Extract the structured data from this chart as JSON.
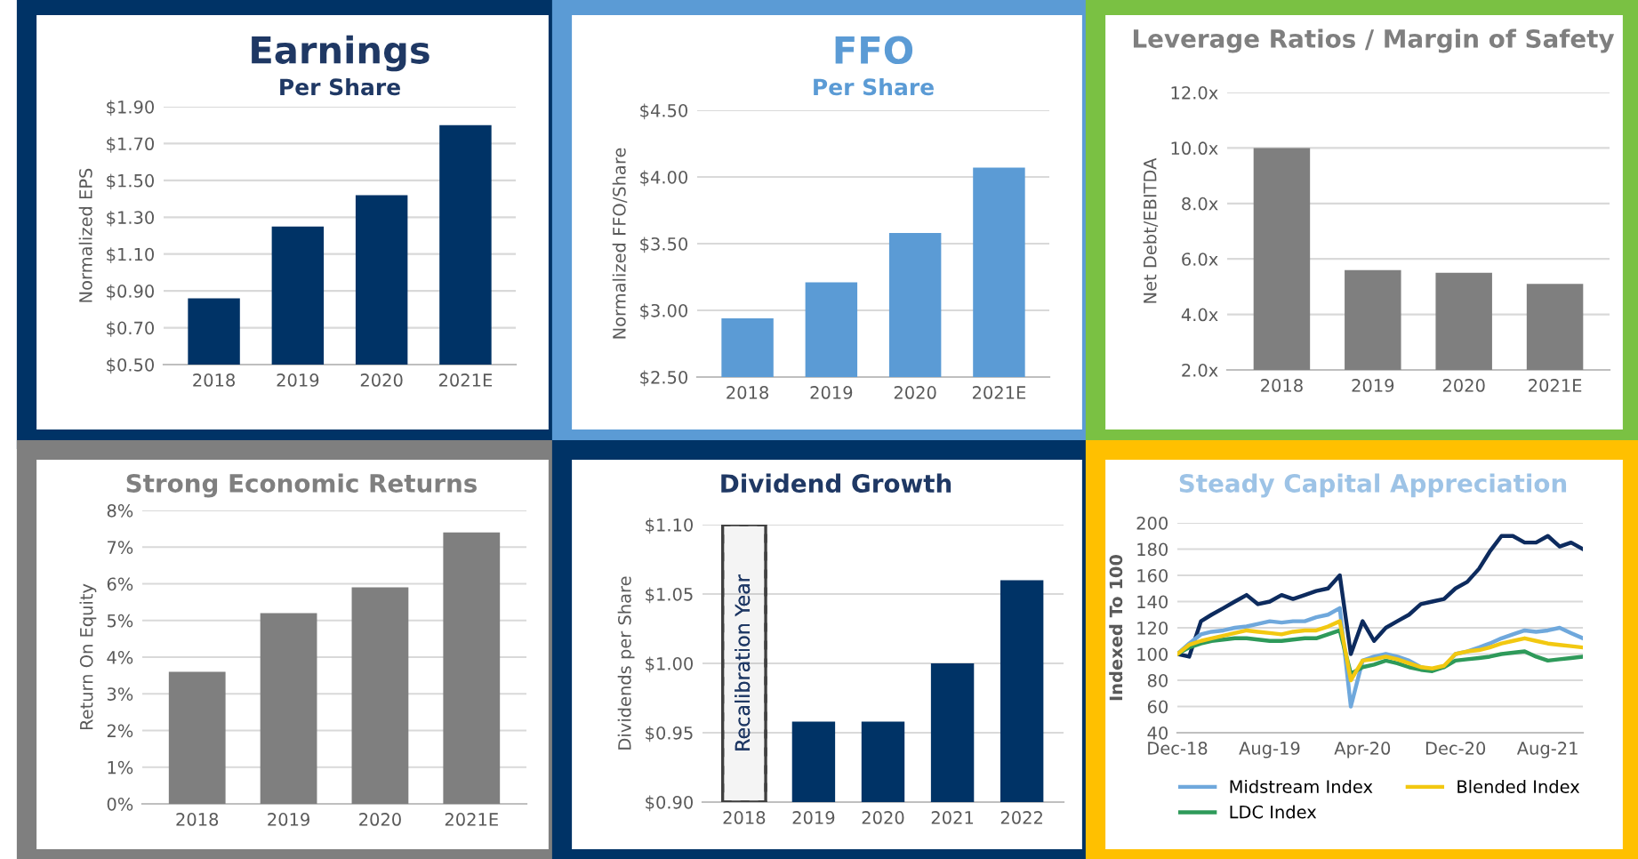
{
  "chart_data": [
    {
      "type": "bar",
      "title": "Earnings",
      "subtitle": "Per Share",
      "ylabel": "Normalized EPS",
      "categories": [
        "2018",
        "2019",
        "2020",
        "2021E"
      ],
      "values": [
        0.86,
        1.25,
        1.42,
        1.8
      ],
      "color": "#003366",
      "ylim": [
        0.5,
        1.9
      ],
      "yticks": [
        {
          "value": 0.5,
          "label": "$0.50"
        },
        {
          "value": 0.7,
          "label": "$0.70"
        },
        {
          "value": 0.9,
          "label": "$0.90"
        },
        {
          "value": 1.1,
          "label": "$1.10"
        },
        {
          "value": 1.3,
          "label": "$1.30"
        },
        {
          "value": 1.5,
          "label": "$1.50"
        },
        {
          "value": 1.7,
          "label": "$1.70"
        },
        {
          "value": 1.9,
          "label": "$1.90"
        }
      ],
      "grid": "y"
    },
    {
      "type": "bar",
      "title": "FFO",
      "subtitle": "Per Share",
      "ylabel": "Normalized FFO/Share",
      "categories": [
        "2018",
        "2019",
        "2020",
        "2021E"
      ],
      "values": [
        2.94,
        3.21,
        3.58,
        4.07
      ],
      "color": "#5b9bd5",
      "ylim": [
        2.5,
        4.5
      ],
      "yticks": [
        {
          "value": 2.5,
          "label": "$2.50"
        },
        {
          "value": 3.0,
          "label": "$3.00"
        },
        {
          "value": 3.5,
          "label": "$3.50"
        },
        {
          "value": 4.0,
          "label": "$4.00"
        },
        {
          "value": 4.5,
          "label": "$4.50"
        }
      ],
      "grid": "y"
    },
    {
      "type": "bar",
      "title": "Leverage Ratios / Margin of Safety",
      "ylabel": "Net Debt/EBITDA",
      "categories": [
        "2018",
        "2019",
        "2020",
        "2021E"
      ],
      "values": [
        10.0,
        5.6,
        5.5,
        5.1
      ],
      "color": "#7f7f7f",
      "ylim": [
        2,
        12
      ],
      "yticks": [
        {
          "value": 2,
          "label": "2.0x"
        },
        {
          "value": 4,
          "label": "4.0x"
        },
        {
          "value": 6,
          "label": "6.0x"
        },
        {
          "value": 8,
          "label": "8.0x"
        },
        {
          "value": 10,
          "label": "10.0x"
        },
        {
          "value": 12,
          "label": "12.0x"
        }
      ],
      "grid": "y"
    },
    {
      "type": "bar",
      "title": "Strong Economic Returns",
      "ylabel": "Return On Equity",
      "categories": [
        "2018",
        "2019",
        "2020",
        "2021E"
      ],
      "values": [
        3.6,
        5.2,
        5.9,
        7.4
      ],
      "color": "#7f7f7f",
      "ylim": [
        0,
        8
      ],
      "yticks": [
        {
          "value": 0,
          "label": "0%"
        },
        {
          "value": 1,
          "label": "1%"
        },
        {
          "value": 2,
          "label": "2%"
        },
        {
          "value": 3,
          "label": "3%"
        },
        {
          "value": 4,
          "label": "4%"
        },
        {
          "value": 5,
          "label": "5%"
        },
        {
          "value": 6,
          "label": "6%"
        },
        {
          "value": 7,
          "label": "7%"
        },
        {
          "value": 8,
          "label": "8%"
        }
      ],
      "grid": "y"
    },
    {
      "type": "bar",
      "title": "Dividend Growth",
      "ylabel": "Dividends per Share",
      "categories": [
        "2018",
        "2019",
        "2020",
        "2021",
        "2022"
      ],
      "values": [
        null,
        0.958,
        0.958,
        1.0,
        1.06
      ],
      "color": "#003366",
      "ylim": [
        0.9,
        1.1
      ],
      "yticks": [
        {
          "value": 0.9,
          "label": "$0.90"
        },
        {
          "value": 0.95,
          "label": "$0.95"
        },
        {
          "value": 1.0,
          "label": "$1.00"
        },
        {
          "value": 1.05,
          "label": "$1.05"
        },
        {
          "value": 1.1,
          "label": "$1.10"
        }
      ],
      "grid": "y",
      "bands": [
        {
          "axis": "x",
          "from": "2018",
          "to": "2018",
          "label": "Recalibration Year",
          "color": "#404040"
        }
      ]
    },
    {
      "type": "line",
      "title": "Steady Capital Appreciation",
      "ylabel": "Indexed To 100",
      "x": [
        "2018-12",
        "2019-01",
        "2019-02",
        "2019-03",
        "2019-04",
        "2019-05",
        "2019-06",
        "2019-07",
        "2019-08",
        "2019-09",
        "2019-10",
        "2019-11",
        "2019-12",
        "2020-01",
        "2020-02",
        "2020-03",
        "2020-04",
        "2020-05",
        "2020-06",
        "2020-07",
        "2020-08",
        "2020-09",
        "2020-10",
        "2020-11",
        "2020-12",
        "2021-01",
        "2021-02",
        "2021-03",
        "2021-04",
        "2021-05",
        "2021-06",
        "2021-07",
        "2021-08",
        "2021-09",
        "2021-10",
        "2021-11"
      ],
      "series": [
        {
          "color": "#0d2b5e",
          "values": [
            100,
            98,
            125,
            130,
            135,
            140,
            145,
            138,
            140,
            145,
            142,
            145,
            148,
            150,
            160,
            100,
            125,
            110,
            120,
            125,
            130,
            138,
            140,
            142,
            150,
            155,
            165,
            178,
            190,
            190,
            185,
            185,
            190,
            182,
            185,
            180
          ]
        },
        {
          "name": "Midstream Index",
          "color": "#6fa8dc",
          "values": [
            100,
            108,
            115,
            117,
            118,
            120,
            121,
            123,
            125,
            124,
            125,
            125,
            128,
            130,
            135,
            60,
            95,
            98,
            100,
            98,
            95,
            90,
            88,
            90,
            100,
            102,
            105,
            108,
            112,
            115,
            118,
            117,
            118,
            120,
            116,
            112
          ]
        },
        {
          "name": "LDC Index",
          "color": "#2e9a5a",
          "values": [
            100,
            105,
            108,
            110,
            111,
            112,
            112,
            111,
            110,
            110,
            111,
            112,
            112,
            115,
            118,
            85,
            90,
            92,
            95,
            93,
            90,
            88,
            87,
            90,
            95,
            96,
            97,
            98,
            100,
            101,
            102,
            98,
            95,
            96,
            97,
            98
          ]
        },
        {
          "name": "Blended Index",
          "color": "#f2c811",
          "values": [
            100,
            107,
            110,
            112,
            114,
            116,
            118,
            117,
            116,
            115,
            117,
            118,
            118,
            121,
            125,
            80,
            95,
            96,
            98,
            96,
            93,
            90,
            89,
            91,
            100,
            102,
            103,
            105,
            108,
            110,
            112,
            110,
            108,
            107,
            106,
            105
          ]
        }
      ],
      "xlim": [
        "2018-12",
        "2021-11"
      ],
      "xticks": [
        {
          "value": "2018-12",
          "label": "Dec-18"
        },
        {
          "value": "2019-08",
          "label": "Aug-19"
        },
        {
          "value": "2020-04",
          "label": "Apr-20"
        },
        {
          "value": "2020-12",
          "label": "Dec-20"
        },
        {
          "value": "2021-08",
          "label": "Aug-21"
        }
      ],
      "ylim": [
        40,
        200
      ],
      "yticks": [
        40,
        60,
        80,
        100,
        120,
        140,
        160,
        180,
        200
      ],
      "grid": "y",
      "legend": "bottom",
      "marker": "none",
      "line_style": "solid"
    }
  ]
}
